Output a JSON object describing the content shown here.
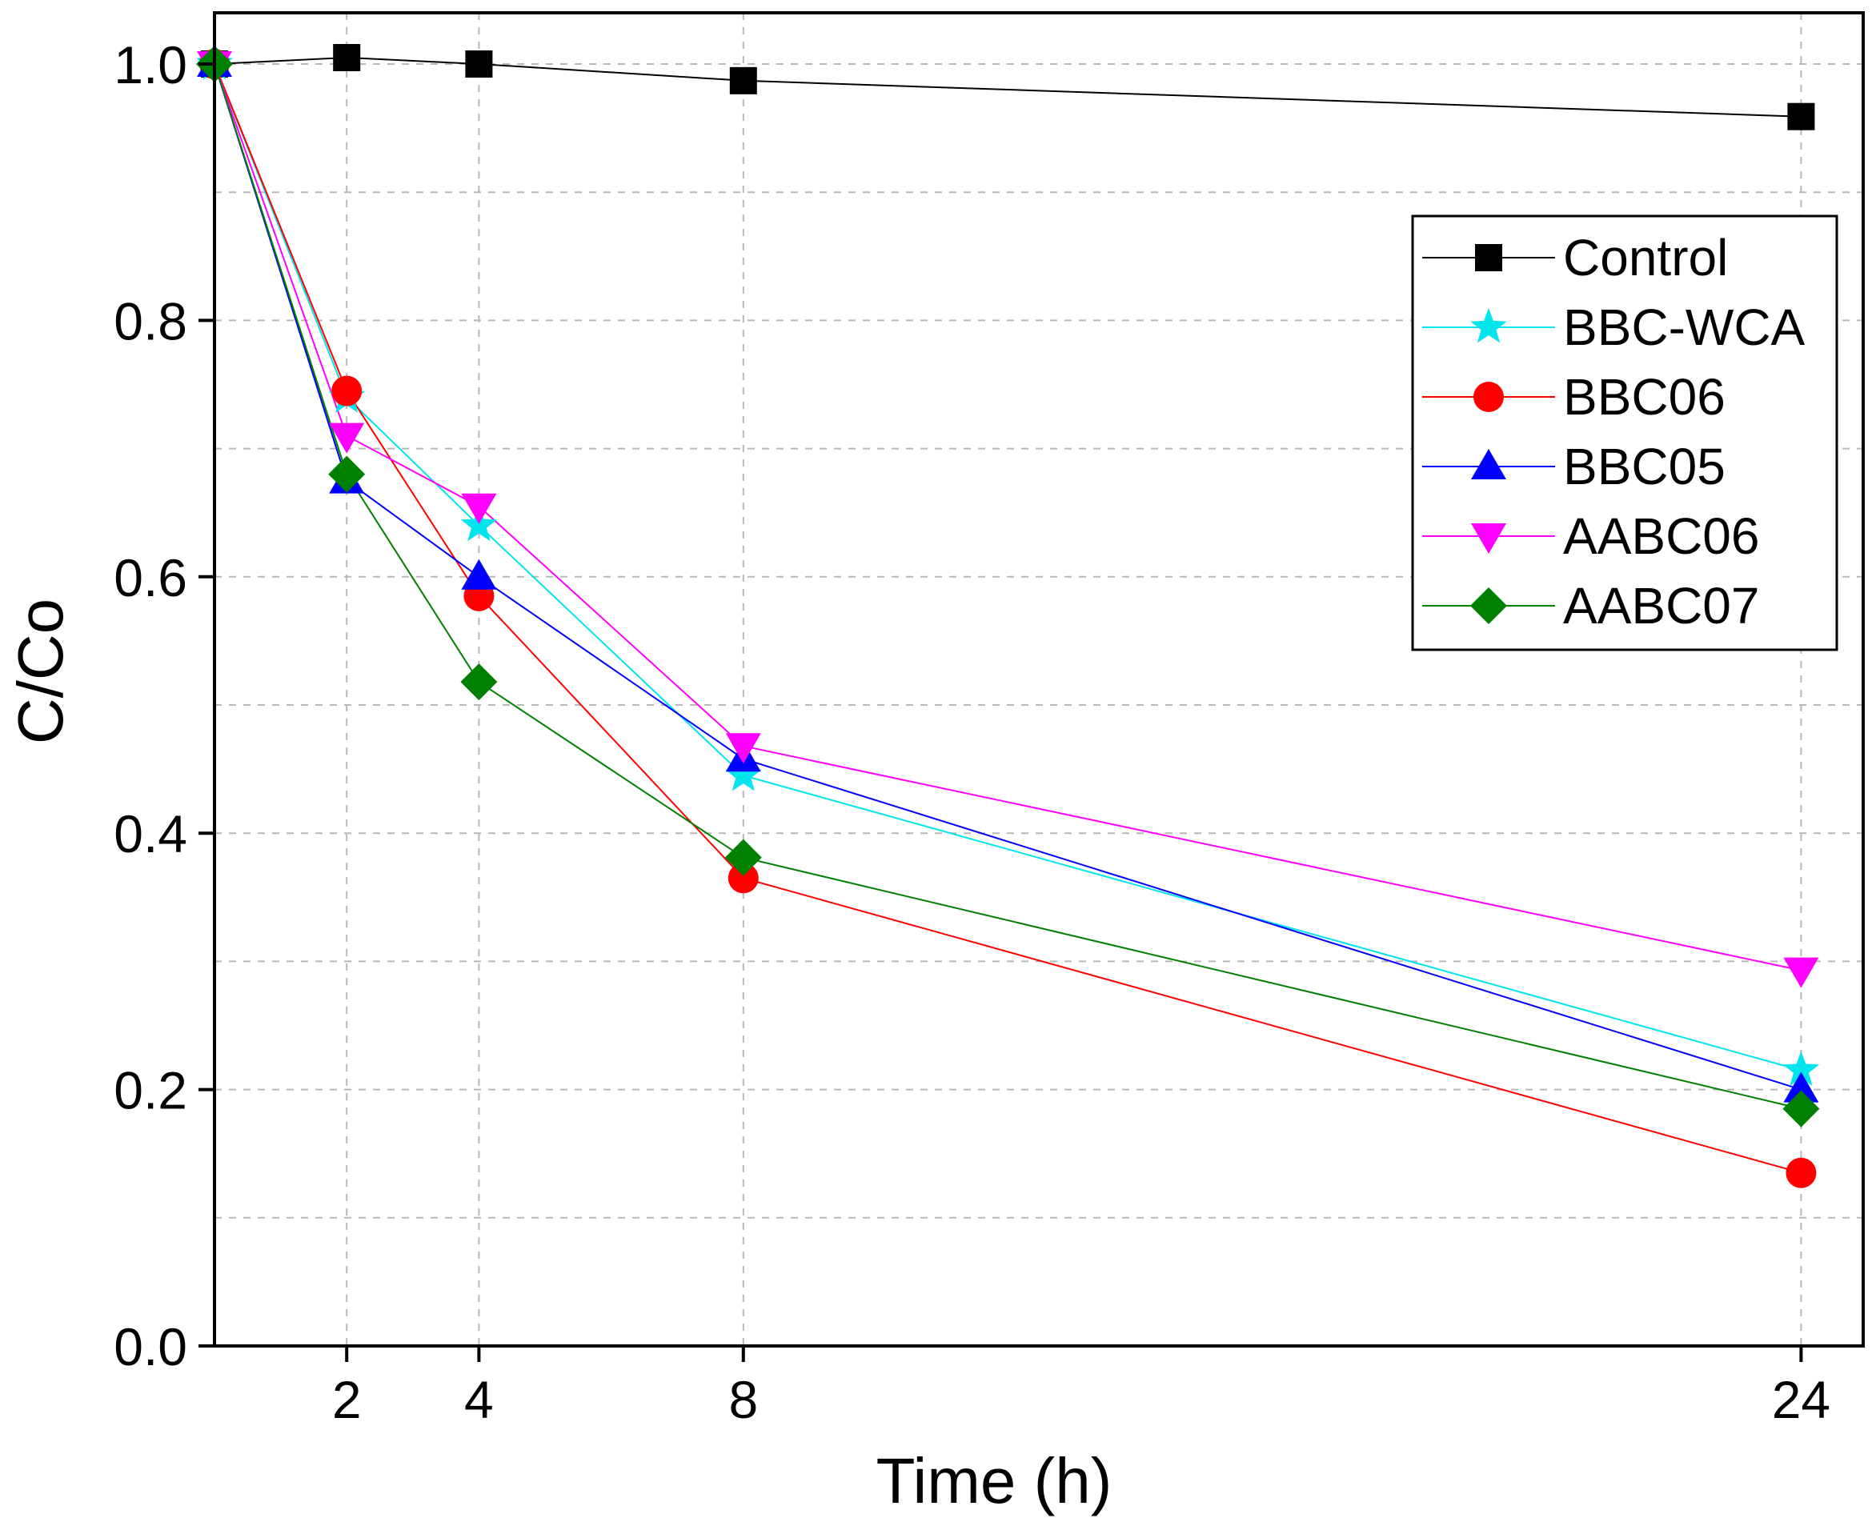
{
  "chart_data": {
    "type": "line",
    "title": "",
    "xlabel": "Time (h)",
    "ylabel": "C/Co",
    "xlim": [
      0,
      24.8
    ],
    "ylim": [
      0,
      1.04
    ],
    "grid": true,
    "legend_position": "top-right",
    "x": [
      0,
      2,
      4,
      8,
      24
    ],
    "x_ticks": [
      2,
      4,
      8,
      24
    ],
    "x_tick_labels": [
      "2",
      "4",
      "8",
      "24"
    ],
    "y_ticks": [
      0.0,
      0.2,
      0.4,
      0.6,
      0.8,
      1.0
    ],
    "y_tick_labels": [
      "0.0",
      "0.2",
      "0.4",
      "0.6",
      "0.8",
      "1.0"
    ],
    "y_minor_gridlines": [
      0.1,
      0.3,
      0.5,
      0.7,
      0.9
    ],
    "series": [
      {
        "name": "Control",
        "color": "#000000",
        "marker": "square",
        "values": [
          1.0,
          1.005,
          1.0,
          0.987,
          0.959
        ]
      },
      {
        "name": "BBC-WCA",
        "color": "#00e5ee",
        "marker": "star",
        "values": [
          1.0,
          0.74,
          0.64,
          0.445,
          0.215
        ]
      },
      {
        "name": "BBC06",
        "color": "#ff0000",
        "marker": "circle",
        "values": [
          1.0,
          0.745,
          0.585,
          0.365,
          0.135
        ]
      },
      {
        "name": "BBC05",
        "color": "#0000ff",
        "marker": "triangle-up",
        "values": [
          1.0,
          0.675,
          0.6,
          0.458,
          0.2
        ]
      },
      {
        "name": "AABC06",
        "color": "#ff00ff",
        "marker": "triangle-down",
        "values": [
          1.0,
          0.71,
          0.655,
          0.468,
          0.293
        ]
      },
      {
        "name": "AABC07",
        "color": "#008000",
        "marker": "diamond",
        "values": [
          1.0,
          0.68,
          0.518,
          0.381,
          0.185
        ]
      }
    ]
  }
}
